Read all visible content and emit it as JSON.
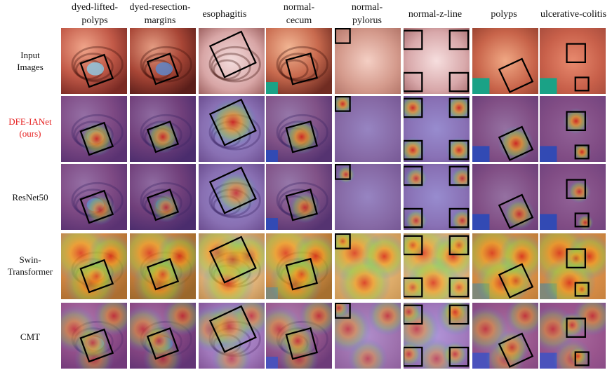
{
  "columns": [
    {
      "label": "dyed-lifted-\npolyps"
    },
    {
      "label": "dyed-resection-\nmargins"
    },
    {
      "label": "esophagitis"
    },
    {
      "label": "normal-\ncecum"
    },
    {
      "label": "normal-\npylorus"
    },
    {
      "label": "normal-z-line"
    },
    {
      "label": "polyps"
    },
    {
      "label": "ulcerative-colitis"
    }
  ],
  "rows": [
    {
      "label": "Input\nImages",
      "kind": "input"
    },
    {
      "label": "DFE-IANet\n(ours)",
      "kind": "ours",
      "color": "#e62020"
    },
    {
      "label": "ResNet50",
      "kind": "resnet"
    },
    {
      "label": "Swin-\nTransformer",
      "kind": "swin"
    },
    {
      "label": "CMT",
      "kind": "cmt"
    }
  ]
}
